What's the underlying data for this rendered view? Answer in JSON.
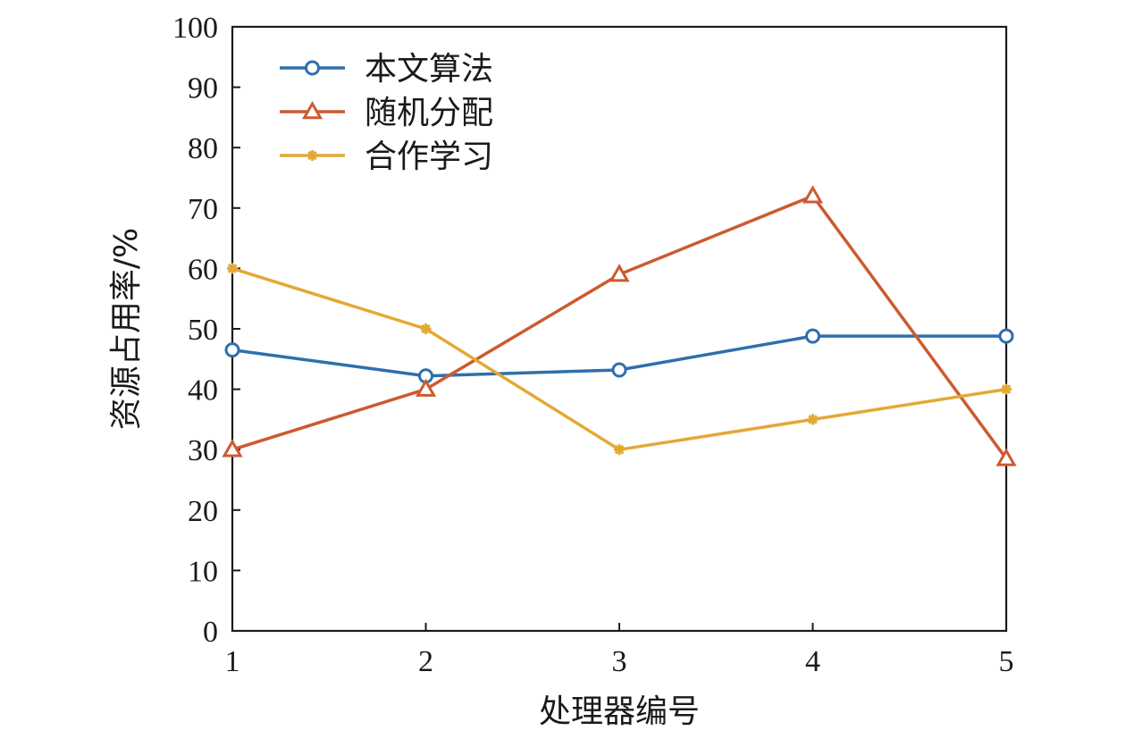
{
  "chart_data": {
    "type": "line",
    "title": "",
    "xlabel": "处理器编号",
    "ylabel": "资源占用率/%",
    "x": [
      1,
      2,
      3,
      4,
      5
    ],
    "xlim": [
      1,
      5
    ],
    "ylim": [
      0,
      100
    ],
    "xticks": [
      "1",
      "2",
      "3",
      "4",
      "5"
    ],
    "yticks": [
      "0",
      "10",
      "20",
      "30",
      "40",
      "50",
      "60",
      "70",
      "80",
      "90",
      "100"
    ],
    "grid": false,
    "legend_position": "top-left",
    "series": [
      {
        "name": "本文算法",
        "values": [
          46.5,
          42.2,
          43.2,
          48.8,
          48.8
        ],
        "color": "#2e6fad",
        "marker": "circle"
      },
      {
        "name": "随机分配",
        "values": [
          30,
          40,
          59,
          72,
          28.5
        ],
        "color": "#cc5a31",
        "marker": "triangle"
      },
      {
        "name": "合作学习",
        "values": [
          60,
          50,
          30,
          35,
          40
        ],
        "color": "#e3a935",
        "marker": "asterisk"
      }
    ]
  }
}
